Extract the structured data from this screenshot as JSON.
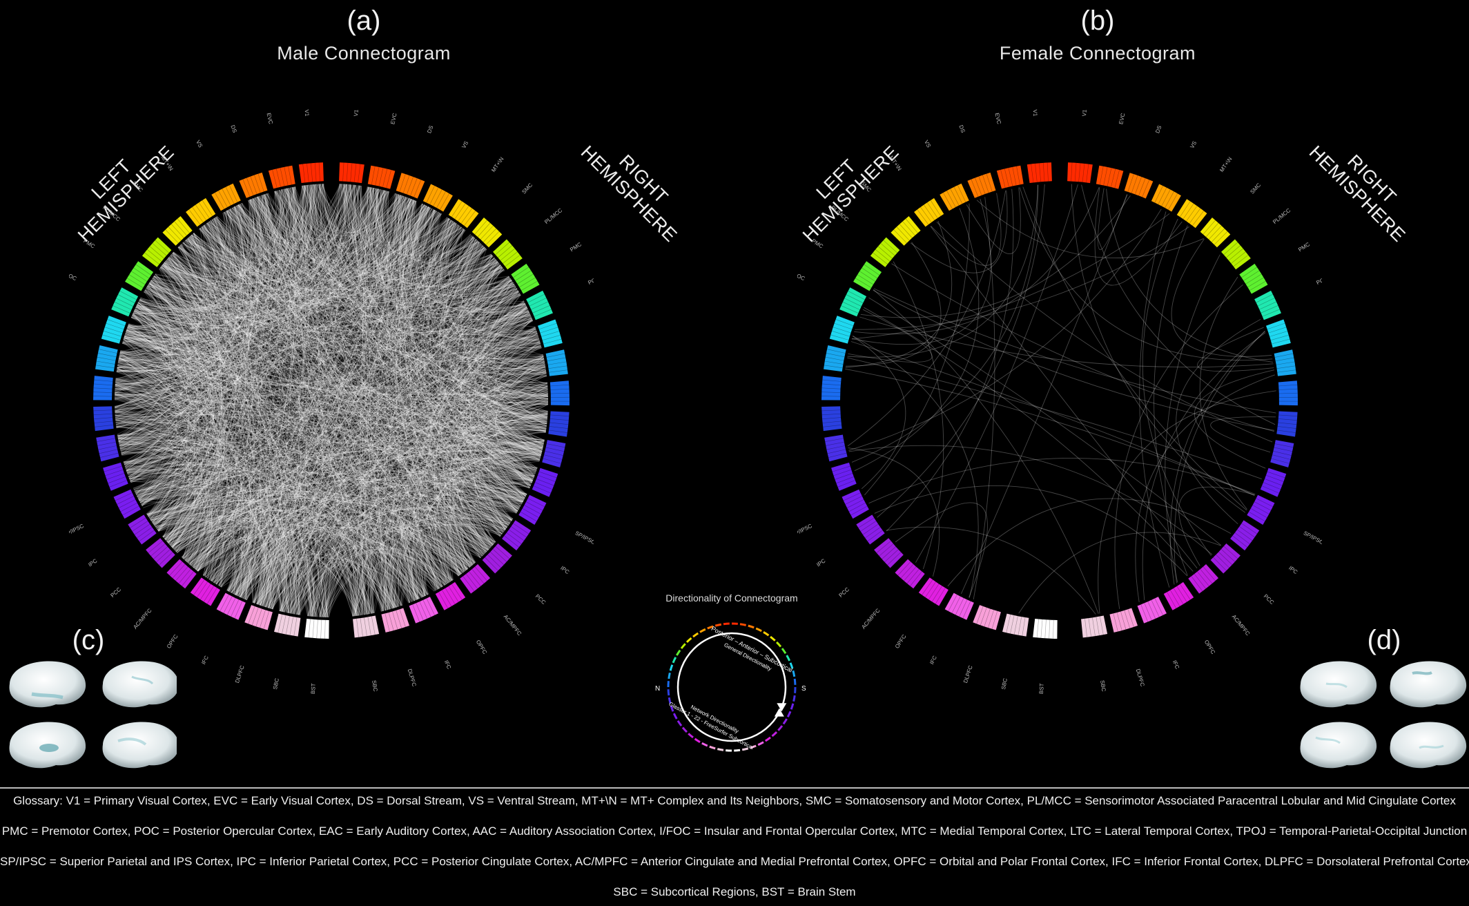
{
  "panels": {
    "a": {
      "label": "(a)",
      "title": "Male Connectogram"
    },
    "b": {
      "label": "(b)",
      "title": "Female Connectogram"
    },
    "c": {
      "label": "(c)"
    },
    "d": {
      "label": "(d)"
    }
  },
  "hemispheres": {
    "left": [
      "LEFT",
      "HEMISPHERE"
    ],
    "right": [
      "RIGHT",
      "HEMISPHERE"
    ]
  },
  "regions_left": [
    "V1",
    "EVC",
    "DS",
    "VS",
    "MT+\\N",
    "SMC",
    "PL/MCC",
    "PMC",
    "POC",
    "EAC",
    "AAC",
    "I/FOC",
    "MTC",
    "LTC",
    "TPOJ",
    "SP/IPSC",
    "IPC",
    "PCC",
    "AC/MPFC",
    "OPFC",
    "IFC",
    "DLPFC",
    "SBC",
    "BST"
  ],
  "regions_right": [
    "V1",
    "EVC",
    "DS",
    "VS",
    "MT+\\N",
    "SMC",
    "PL/MCC",
    "PMC",
    "POC",
    "EAC",
    "AAC",
    "I/FOC",
    "MTC",
    "LTC",
    "TPOJ",
    "SP/IPSC",
    "IPC",
    "PCC",
    "AC/MPFC",
    "OPFC",
    "IFC",
    "DLPFC",
    "SBC"
  ],
  "region_colors": [
    "#ff2a00",
    "#ff4d00",
    "#ff7a00",
    "#ffa200",
    "#ffcc00",
    "#f0e800",
    "#b8f000",
    "#5ef030",
    "#20e8b0",
    "#1fd8f0",
    "#1aa8f0",
    "#1a6cf0",
    "#2a40e0",
    "#4a30e8",
    "#6a20f0",
    "#7a1ef0",
    "#8a1ee8",
    "#a01ee0",
    "#c020e0",
    "#e020e0",
    "#f060e8",
    "#f8a0d8",
    "#f0d0e0",
    "#ffffff"
  ],
  "directionality": {
    "title": "Directionality of Connectogram",
    "outer_label": "Posterior – Anterior – Subcortical",
    "outer_label2": "General Directionality",
    "inner_label": "Network Directionality",
    "inner_label2": "Glasser 1 - 22 - FreeSurfer Subcortical",
    "n": "N",
    "s": "S"
  },
  "glossary": [
    "Glossary:  V1 = Primary Visual Cortex,   EVC = Early Visual Cortex,   DS = Dorsal Stream,   VS = Ventral Stream,   MT+\\N = MT+ Complex and Its Neighbors,   SMC = Somatosensory and Motor Cortex,   PL/MCC = Sensorimotor Associated Paracentral Lobular and Mid Cingulate Cortex",
    "PMC = Premotor Cortex,   POC = Posterior Opercular Cortex,   EAC = Early Auditory Cortex,   AAC = Auditory Association Cortex,   I/FOC = Insular and Frontal Opercular Cortex,   MTC = Medial Temporal Cortex,   LTC = Lateral Temporal Cortex,   TPOJ = Temporal-Parietal-Occipital Junction",
    "SP/IPSC = Superior Parietal and IPS Cortex,   IPC = Inferior Parietal Cortex,   PCC = Posterior Cingulate Cortex,   AC/MPFC = Anterior Cingulate and Medial Prefrontal Cortex,   OPFC = Orbital and Polar Frontal Cortex,   IFC = Inferior Frontal Cortex,   DLPFC = Dorsolateral Prefrontal Cortex",
    "SBC = Subcortical Regions,   BST = Brain Stem"
  ]
}
